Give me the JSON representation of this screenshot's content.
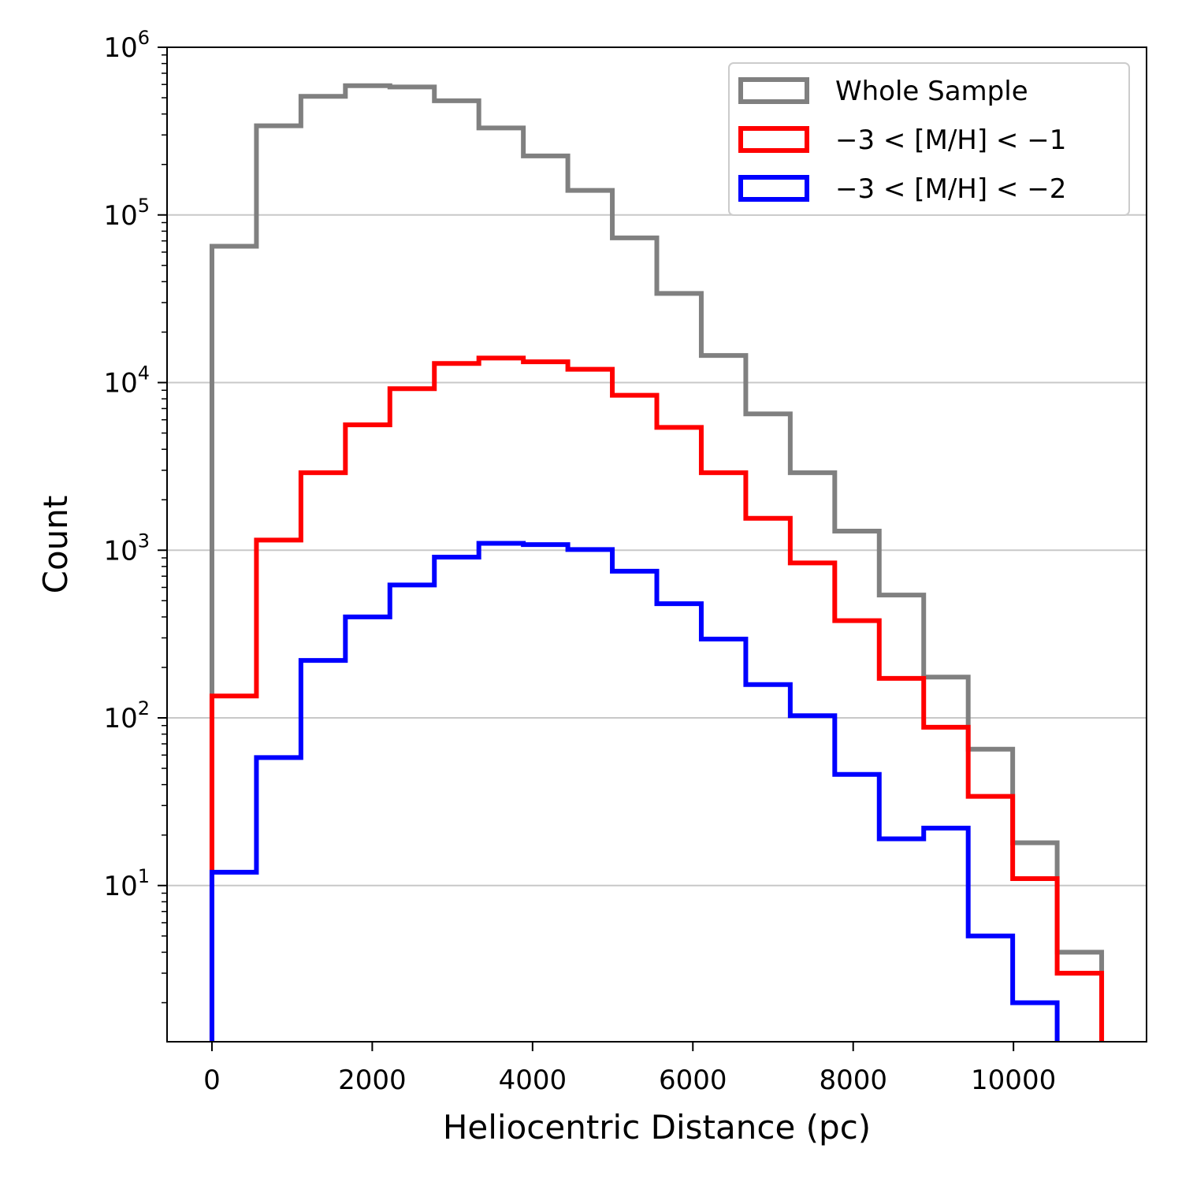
{
  "chart_data": {
    "type": "histogram",
    "xlabel": "Heliocentric Distance (pc)",
    "ylabel": "Count",
    "xlim": [
      -560,
      11660
    ],
    "ylim": [
      1.17,
      1000000
    ],
    "yscale": "log",
    "grid": "y-major",
    "legend_position": "top-right",
    "x_ticks": [
      0,
      2000,
      4000,
      6000,
      8000,
      10000
    ],
    "x_tick_labels": [
      "0",
      "2000",
      "4000",
      "6000",
      "8000",
      "10000"
    ],
    "y_ticks": [
      10,
      100,
      1000,
      10000,
      100000,
      1000000
    ],
    "y_tick_labels": [
      {
        "base": "10",
        "exp": "1"
      },
      {
        "base": "10",
        "exp": "2"
      },
      {
        "base": "10",
        "exp": "3"
      },
      {
        "base": "10",
        "exp": "4"
      },
      {
        "base": "10",
        "exp": "5"
      },
      {
        "base": "10",
        "exp": "6"
      }
    ],
    "bin_edges": [
      0,
      555,
      1110,
      1665,
      2220,
      2775,
      3330,
      3885,
      4440,
      4995,
      5550,
      6105,
      6660,
      7215,
      7770,
      8325,
      8880,
      9435,
      9990,
      10545,
      11100
    ],
    "series": [
      {
        "name": "Whole Sample",
        "color": "#808080",
        "values": [
          65000,
          340000,
          510000,
          590000,
          580000,
          480000,
          330000,
          225000,
          140000,
          73000,
          34000,
          14500,
          6500,
          2900,
          1300,
          540,
          175,
          65,
          18,
          4
        ]
      },
      {
        "name": "−3 < [M/H] < −1",
        "color": "#ff0000",
        "values": [
          135,
          1150,
          2900,
          5600,
          9200,
          13000,
          14000,
          13300,
          12000,
          8400,
          5400,
          2900,
          1550,
          840,
          380,
          172,
          88,
          34,
          11,
          3
        ]
      },
      {
        "name": "−3 < [M/H] < −2",
        "color": "#0000ff",
        "values": [
          12,
          58,
          220,
          400,
          620,
          910,
          1100,
          1080,
          1010,
          750,
          480,
          295,
          158,
          103,
          46,
          19,
          22,
          5,
          2,
          0
        ]
      }
    ]
  }
}
